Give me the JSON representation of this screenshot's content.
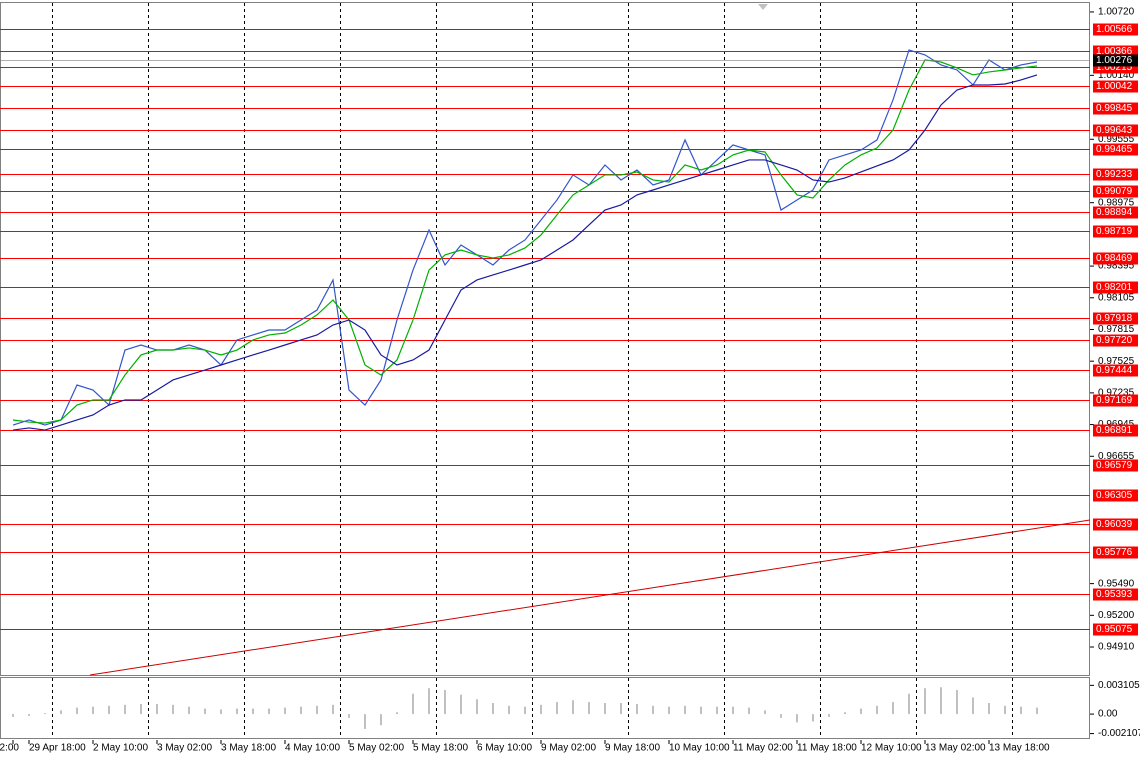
{
  "chart_data": [
    {
      "type": "line",
      "categories": [
        "2:00",
        "29 Apr 18:00",
        null,
        null,
        null,
        "2 May 10:00",
        null,
        null,
        null,
        "3 May 02:00",
        null,
        null,
        null,
        "3 May 18:00",
        null,
        null,
        null,
        "4 May 10:00",
        null,
        null,
        null,
        "5 May 02:00",
        null,
        null,
        null,
        "5 May 18:00",
        null,
        null,
        null,
        "6 May 10:00",
        null,
        null,
        null,
        "9 May 02:00",
        null,
        null,
        null,
        "9 May 18:00",
        null,
        null,
        null,
        "10 May 10:00",
        null,
        null,
        null,
        "11 May 02:00",
        null,
        null,
        null,
        "11 May 18:00",
        null,
        null,
        null,
        "12 May 10:00",
        null,
        null,
        null,
        "13 May 02:00",
        null,
        null,
        null,
        "13 May 18:00",
        null,
        null,
        null
      ],
      "series": [
        {
          "color": "#3355cc",
          "values": [
            0.96941,
            0.96987,
            0.96941,
            0.96987,
            0.97307,
            0.97261,
            0.97124,
            0.97627,
            0.97673,
            0.97627,
            0.97627,
            0.97673,
            0.97627,
            0.9749,
            0.97719,
            0.97765,
            0.9781,
            0.9781,
            0.97902,
            0.97993,
            0.98268,
            0.97261,
            0.97124,
            0.97353,
            0.97902,
            0.98359,
            0.98725,
            0.98405,
            0.98588,
            0.98497,
            0.98405,
            0.98542,
            0.98634,
            0.98817,
            0.99,
            0.99229,
            0.99137,
            0.9932,
            0.99183,
            0.99274,
            0.99137,
            0.99183,
            0.99549,
            0.99229,
            0.99366,
            0.99503,
            0.99457,
            0.99412,
            0.98908,
            0.99,
            0.99091,
            0.99366,
            0.99412,
            0.99457,
            0.99549,
            0.99915,
            1.00372,
            1.00327,
            1.00235,
            1.00189,
            1.00052,
            1.00281,
            1.00189,
            1.00235,
            1.00262
          ]
        },
        {
          "color": "#00b000",
          "values": [
            0.96987,
            0.96968,
            0.96959,
            0.96987,
            0.97124,
            0.9717,
            0.9717,
            0.97399,
            0.97582,
            0.97627,
            0.97627,
            0.97646,
            0.97627,
            0.97582,
            0.97627,
            0.97719,
            0.97765,
            0.97783,
            0.97856,
            0.97948,
            0.98085,
            0.97902,
            0.9749,
            0.97399,
            0.97536,
            0.97902,
            0.98359,
            0.98497,
            0.98542,
            0.98497,
            0.98469,
            0.98497,
            0.98561,
            0.9868,
            0.98863,
            0.99046,
            0.99137,
            0.99229,
            0.99229,
            0.99256,
            0.99183,
            0.99164,
            0.9932,
            0.99274,
            0.9932,
            0.99412,
            0.99457,
            0.99439,
            0.99229,
            0.99046,
            0.99018,
            0.99183,
            0.9932,
            0.99412,
            0.99476,
            0.9964,
            1.00006,
            1.00281,
            1.00262,
            1.00208,
            1.00144,
            1.00171,
            1.00189,
            1.00208,
            1.00226
          ]
        },
        {
          "color": "#1a1aa0",
          "values": [
            0.96895,
            0.96914,
            0.96895,
            0.96941,
            0.96987,
            0.97033,
            0.97124,
            0.9717,
            0.9717,
            0.97261,
            0.97353,
            0.97399,
            0.97444,
            0.9749,
            0.97536,
            0.97582,
            0.97627,
            0.97673,
            0.97719,
            0.97765,
            0.97856,
            0.97902,
            0.9781,
            0.97582,
            0.9749,
            0.97536,
            0.97627,
            0.97902,
            0.98176,
            0.98268,
            0.98314,
            0.98359,
            0.98405,
            0.98451,
            0.98542,
            0.98634,
            0.98771,
            0.98908,
            0.98954,
            0.99046,
            0.99091,
            0.99137,
            0.99183,
            0.99229,
            0.99274,
            0.9932,
            0.99366,
            0.99366,
            0.9932,
            0.99274,
            0.99183,
            0.99164,
            0.99201,
            0.99256,
            0.99311,
            0.99366,
            0.99457,
            0.9964,
            0.99869,
            1.00006,
            1.00052,
            1.00052,
            1.00061,
            1.00098,
            1.00144
          ]
        }
      ],
      "ylim": [
        0.94654,
        1.00811
      ],
      "yticks": [
        {
          "value": 1.0072,
          "label": "1.00720"
        },
        {
          "value": 1.0014,
          "label": "1.00140"
        },
        0.99555,
        0.98975,
        0.98395,
        0.98105,
        0.97815,
        0.97525,
        0.97235,
        0.96945,
        0.96655,
        {
          "value": 0.9549,
          "label": "0.95490"
        },
        {
          "value": 0.952,
          "label": "0.95200"
        },
        {
          "value": 0.9491,
          "label": "0.94910"
        }
      ],
      "levels": [
        1.00566,
        1.00366,
        1.00215,
        1.00042,
        0.99845,
        0.99643,
        0.99465,
        0.99233,
        0.99079,
        0.98894,
        0.98719,
        0.98469,
        0.98201,
        0.97918,
        {
          "value": 0.9772,
          "label": "0.97720"
        },
        0.97444,
        0.97169,
        0.96891,
        0.96579,
        0.96305,
        0.96039,
        0.95776,
        0.95393,
        0.95075
      ],
      "level_color": "#ff0000",
      "trendline": {
        "values": [
          0.94654,
          0.96072
        ],
        "color": "#cc0000"
      },
      "current_price": 1.00276
    },
    {
      "type": "bar",
      "color": "#c0c0c0",
      "values": [
        -0.0003,
        -0.0002,
        0.0001,
        0.0004,
        0.0007,
        0.0008,
        0.0009,
        0.001,
        0.0011,
        0.0011,
        0.001,
        0.0008,
        0.0006,
        0.0005,
        0.0006,
        0.0006,
        0.0006,
        0.0007,
        0.0008,
        0.0009,
        0.001,
        -0.0004,
        -0.0016,
        -0.0012,
        0.0002,
        0.0022,
        0.0028,
        0.0026,
        0.0021,
        0.0016,
        0.0012,
        0.0009,
        0.0008,
        0.001,
        0.0013,
        0.0015,
        0.0013,
        0.0012,
        0.0012,
        0.0011,
        0.0009,
        0.0008,
        0.0009,
        0.0008,
        0.0008,
        0.0008,
        0.0007,
        0.0004,
        -0.0004,
        -0.0009,
        -0.0008,
        -0.0003,
        0.0002,
        0.0006,
        0.0009,
        0.0013,
        0.0022,
        0.0028,
        0.0029,
        0.0026,
        0.0018,
        0.0012,
        0.0009,
        0.0008,
        0.0007
      ],
      "ylim": [
        -0.0028,
        0.0039
      ],
      "yticks": [
        0.003105,
        {
          "value": 0,
          "label": "0.00"
        },
        -0.002107
      ]
    }
  ]
}
